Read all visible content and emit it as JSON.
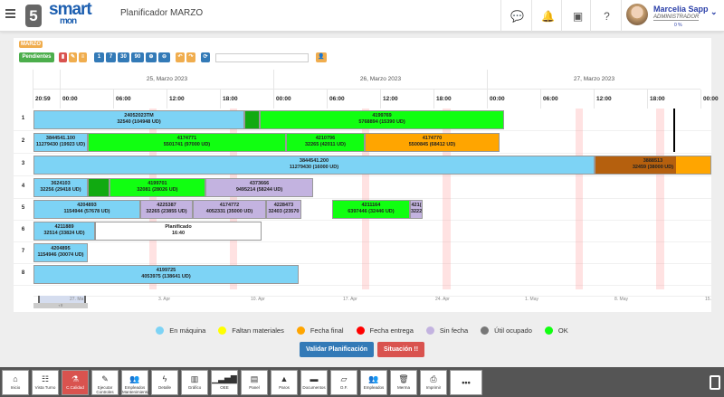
{
  "header": {
    "title": "Planificador MARZO",
    "logo_text": "smart",
    "logo_sub": "mon",
    "logo_num": "5",
    "user_name": "Marcelia Sapp",
    "user_role": "ADMINISTRADOR",
    "user_progress": "0 %",
    "icons": [
      "chat-icon",
      "bell-icon",
      "id-card-icon",
      "help-icon"
    ]
  },
  "toolbar": {
    "month_tag": "MARZO",
    "pendientes": "Pendientes",
    "zoom_buttons": [
      "1",
      "7",
      "30",
      "90"
    ],
    "search_value": ""
  },
  "timeline": {
    "dates": [
      "25, Marzo 2023",
      "26, Marzo 2023",
      "27, Marzo 2023"
    ],
    "start_label": "20:59",
    "hours": [
      "00:00",
      "06:00",
      "12:00",
      "18:00",
      "00:00",
      "06:00",
      "12:00",
      "18:00",
      "00:00",
      "06:00",
      "12:00",
      "18:00",
      "00:00"
    ],
    "now": "2023-03-27T20:57"
  },
  "rows": [
    "1",
    "2",
    "3",
    "4",
    "5",
    "6",
    "7",
    "8"
  ],
  "colors": {
    "en_maquina": "#7dd3f5",
    "faltan": "#ffff00",
    "fecha_final": "#ffa500",
    "fecha_entrega": "#ff0000",
    "sin_fecha": "#c3b3e0",
    "util": "#777777",
    "ok": "#11ff11",
    "ok_dark": "#11aa11",
    "brown": "#b5600e",
    "planned": "#ffffff"
  },
  "stripes": [
    [
      "2023-03-25T10:04",
      "2023-03-25T10:53"
    ],
    [
      "2023-03-25T19:08",
      "2023-03-25T19:57"
    ],
    [
      "2023-03-26T10:00",
      "2023-03-26T10:49"
    ],
    [
      "2023-03-26T19:04",
      "2023-03-26T19:53"
    ],
    [
      "2023-03-27T10:00",
      "2023-03-27T10:49"
    ],
    [
      "2023-03-27T19:04",
      "2023-03-27T19:53"
    ]
  ],
  "tasks": [
    {
      "row": 0,
      "start": "2023-03-24T20:59",
      "end": "2023-03-25T20:45",
      "status": "en_maquina",
      "line1": "24052023TM",
      "line2": "32540 (104948 UD)"
    },
    {
      "row": 0,
      "start": "2023-03-25T20:45",
      "end": "2023-03-25T22:29",
      "status": "ok_dark",
      "line1": "",
      "line2": ""
    },
    {
      "row": 0,
      "start": "2023-03-25T22:29",
      "end": "2023-03-27T01:56",
      "status": "ok",
      "line1": "4199769",
      "line2": "5768894 (15390 UD)"
    },
    {
      "row": 1,
      "start": "2023-03-24T20:59",
      "end": "2023-03-25T03:09",
      "status": "en_maquina",
      "line1": "3844541.100",
      "line2": "11279430 (19923 UD)"
    },
    {
      "row": 1,
      "start": "2023-03-25T03:09",
      "end": "2023-03-26T01:25",
      "status": "ok",
      "line1": "4174771",
      "line2": "5501741 (97000 UD)"
    },
    {
      "row": 1,
      "start": "2023-03-26T01:25",
      "end": "2023-03-26T10:16",
      "status": "ok",
      "line1": "4210796",
      "line2": "32265 (42011 UD)"
    },
    {
      "row": 1,
      "start": "2023-03-26T10:16",
      "end": "2023-03-27T01:25",
      "status": "fecha_final",
      "line1": "4174770",
      "line2": "5500845 (68412 UD)"
    },
    {
      "row": 2,
      "start": "2023-03-24T20:59",
      "end": "2023-03-27T12:06",
      "status": "en_maquina",
      "line1": "3844541.200",
      "line2": "11279430 (16000 UD)"
    },
    {
      "row": 2,
      "start": "2023-03-27T12:06",
      "end": "2023-03-28T01:13",
      "status": "brown",
      "line1": "3888513",
      "line2": "32459 (38000 UD)"
    },
    {
      "row": 3,
      "start": "2023-03-24T20:59",
      "end": "2023-03-25T03:09",
      "status": "en_maquina",
      "line1": "3624103",
      "line2": "32256 (29418 UD)"
    },
    {
      "row": 3,
      "start": "2023-03-25T03:09",
      "end": "2023-03-25T05:35",
      "status": "ok_dark",
      "line1": "",
      "line2": ""
    },
    {
      "row": 3,
      "start": "2023-03-25T05:35",
      "end": "2023-03-25T16:22",
      "status": "ok",
      "line1": "4199701",
      "line2": "32081 (28026 UD)"
    },
    {
      "row": 3,
      "start": "2023-03-25T16:22",
      "end": "2023-03-26T04:29",
      "status": "sin_fecha",
      "line1": "4373666",
      "line2": "9495214 (58244 UD)"
    },
    {
      "row": 4,
      "start": "2023-03-24T20:59",
      "end": "2023-03-25T09:03",
      "status": "en_maquina",
      "line1": "4204893",
      "line2": "1154944 (57678 UD)"
    },
    {
      "row": 4,
      "start": "2023-03-25T09:03",
      "end": "2023-03-25T14:57",
      "status": "sin_fecha",
      "line1": "4225387",
      "line2": "32265 (23855 UD)"
    },
    {
      "row": 4,
      "start": "2023-03-25T14:57",
      "end": "2023-03-25T23:11",
      "status": "sin_fecha",
      "line1": "4174772",
      "line2": "4052331 (35000 UD)"
    },
    {
      "row": 4,
      "start": "2023-03-25T23:11",
      "end": "2023-03-26T03:09",
      "status": "sin_fecha",
      "line1": "4228473",
      "line2": "32403 (23570"
    },
    {
      "row": 4,
      "start": "2023-03-26T06:36",
      "end": "2023-03-26T15:21",
      "status": "ok",
      "line1": "4211164",
      "line2": "6397446 (32446 UD)"
    },
    {
      "row": 4,
      "start": "2023-03-26T15:21",
      "end": "2023-03-26T16:47",
      "status": "sin_fecha",
      "line1": "421(",
      "line2": "3222"
    },
    {
      "row": 5,
      "start": "2023-03-24T20:59",
      "end": "2023-03-25T03:58",
      "status": "en_maquina",
      "line1": "4211889",
      "line2": "32514 (33824 UD)"
    },
    {
      "row": 5,
      "start": "2023-03-25T03:58",
      "end": "2023-03-25T22:41",
      "status": "planned",
      "line1": "Planificado",
      "line2": "16:40"
    },
    {
      "row": 6,
      "start": "2023-03-24T20:59",
      "end": "2023-03-25T03:09",
      "status": "en_maquina",
      "line1": "4204895",
      "line2": "1154946 (30074 UD)"
    },
    {
      "row": 7,
      "start": "2023-03-24T20:59",
      "end": "2023-03-26T02:51",
      "status": "en_maquina",
      "line1": "4199725",
      "line2": "4053975 (138641 UD)"
    }
  ],
  "navigator": {
    "labels": [
      "27. Ma",
      "3. Apr",
      "10. Apr",
      "17. Apr",
      "24. Apr",
      "1. May",
      "8. May",
      "15."
    ]
  },
  "legend": [
    {
      "label": "En máquina",
      "color": "#7dd3f5"
    },
    {
      "label": "Faltan materiales",
      "color": "#ffff00"
    },
    {
      "label": "Fecha final",
      "color": "#ffa500"
    },
    {
      "label": "Fecha entrega",
      "color": "#ff0000"
    },
    {
      "label": "Sin fecha",
      "color": "#c3b3e0"
    },
    {
      "label": "Útil ocupado",
      "color": "#777777"
    },
    {
      "label": "OK",
      "color": "#11ff11"
    }
  ],
  "actions": {
    "validar": "Validar Planificación",
    "situacion": "Situación !!"
  },
  "bottom": [
    {
      "label": "Inicio",
      "icon": "⌂"
    },
    {
      "label": "Vista Turno",
      "icon": "☷"
    },
    {
      "label": "C.Calidad",
      "icon": "⚗",
      "active": true
    },
    {
      "label": "Ejecutar Controles",
      "icon": "✎"
    },
    {
      "label": "Empleados Mantenimiento",
      "icon": "👥"
    },
    {
      "label": "Detalle",
      "icon": "ϟ"
    },
    {
      "label": "Gráfico",
      "icon": "▥"
    },
    {
      "label": "OEE",
      "icon": "▁▃▅▇"
    },
    {
      "label": "Panel",
      "icon": "▤"
    },
    {
      "label": "Paros",
      "icon": "▲"
    },
    {
      "label": "Documentos",
      "icon": "▬"
    },
    {
      "label": "O.F.",
      "icon": "▱"
    },
    {
      "label": "Empleados",
      "icon": "👥"
    },
    {
      "label": "Merma",
      "icon": "🗑"
    },
    {
      "label": "Imprimir",
      "icon": "⎙"
    },
    {
      "label": "",
      "icon": "•••"
    }
  ]
}
